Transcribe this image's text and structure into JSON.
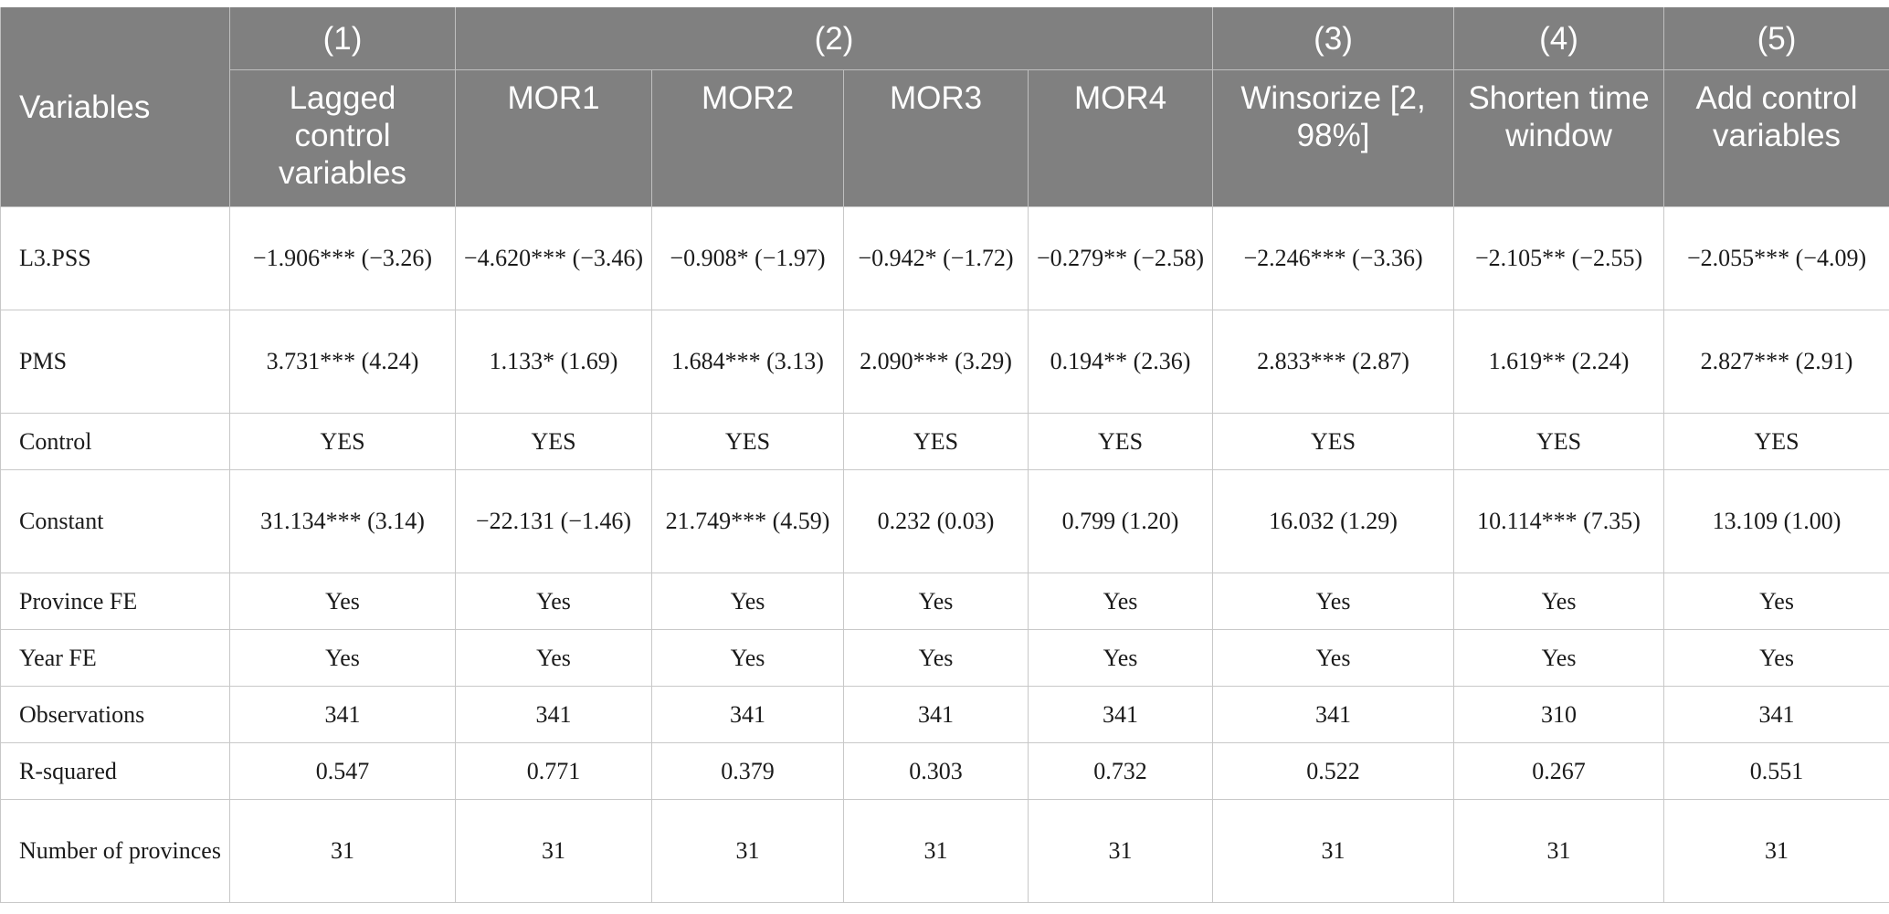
{
  "header": {
    "variables_label": "Variables",
    "model_numbers": [
      "(1)",
      "(2)",
      "(3)",
      "(4)",
      "(5)"
    ],
    "subheaders": [
      "Lagged control variables",
      "MOR1",
      "MOR2",
      "MOR3",
      "MOR4",
      "Winsorize [2, 98%]",
      "Shorten time window",
      "Add control variables"
    ]
  },
  "rows": [
    {
      "label": "L3.PSS",
      "cells": [
        "−1.906*** (−3.26)",
        "−4.620*** (−3.46)",
        "−0.908* (−1.97)",
        "−0.942* (−1.72)",
        "−0.279** (−2.58)",
        "−2.246*** (−3.36)",
        "−2.105** (−2.55)",
        "−2.055*** (−4.09)"
      ]
    },
    {
      "label": "PMS",
      "cells": [
        "3.731*** (4.24)",
        "1.133* (1.69)",
        "1.684*** (3.13)",
        "2.090*** (3.29)",
        "0.194** (2.36)",
        "2.833*** (2.87)",
        "1.619** (2.24)",
        "2.827*** (2.91)"
      ]
    },
    {
      "label": "Control",
      "cells": [
        "YES",
        "YES",
        "YES",
        "YES",
        "YES",
        "YES",
        "YES",
        "YES"
      ]
    },
    {
      "label": "Constant",
      "cells": [
        "31.134*** (3.14)",
        "−22.131 (−1.46)",
        "21.749*** (4.59)",
        "0.232 (0.03)",
        "0.799 (1.20)",
        "16.032 (1.29)",
        "10.114*** (7.35)",
        "13.109 (1.00)"
      ]
    },
    {
      "label": "Province FE",
      "cells": [
        "Yes",
        "Yes",
        "Yes",
        "Yes",
        "Yes",
        "Yes",
        "Yes",
        "Yes"
      ]
    },
    {
      "label": "Year FE",
      "cells": [
        "Yes",
        "Yes",
        "Yes",
        "Yes",
        "Yes",
        "Yes",
        "Yes",
        "Yes"
      ]
    },
    {
      "label": "Observations",
      "cells": [
        "341",
        "341",
        "341",
        "341",
        "341",
        "341",
        "310",
        "341"
      ]
    },
    {
      "label": "R-squared",
      "cells": [
        "0.547",
        "0.771",
        "0.379",
        "0.303",
        "0.732",
        "0.522",
        "0.267",
        "0.551"
      ]
    },
    {
      "label": "Number of provinces",
      "cells": [
        "31",
        "31",
        "31",
        "31",
        "31",
        "31",
        "31",
        "31"
      ]
    }
  ]
}
